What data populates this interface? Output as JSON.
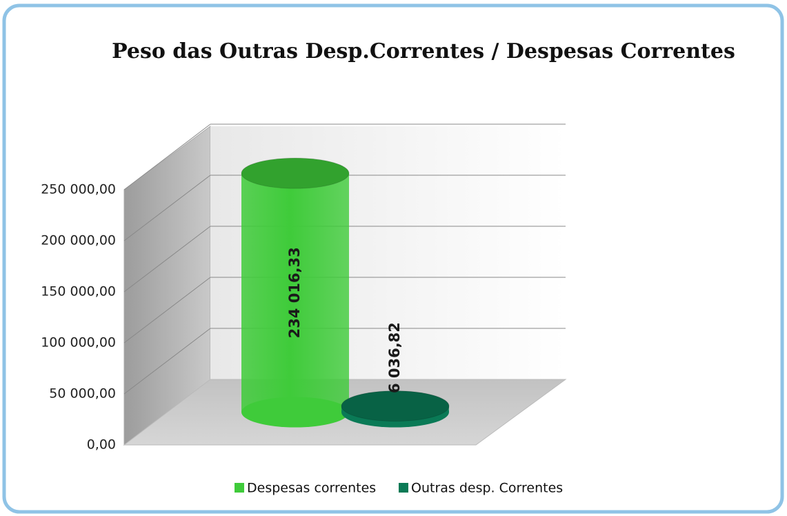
{
  "chart_data": {
    "type": "cylinder3d",
    "title": "Peso das Outras Desp.Correntes / Despesas Correntes",
    "series": [
      {
        "name": "Despesas correntes",
        "color": "#3fcb3a",
        "values": [
          234016.33
        ],
        "value_labels": [
          "234 016,33"
        ]
      },
      {
        "name": "Outras desp. Correntes",
        "color": "#0a7a56",
        "values": [
          6036.82
        ],
        "value_labels": [
          "6 036,82"
        ]
      }
    ],
    "ylim": [
      0,
      250000
    ],
    "yticks": [
      {
        "value": 0,
        "label": "0,00"
      },
      {
        "value": 50000,
        "label": "50 000,00"
      },
      {
        "value": 100000,
        "label": "100 000,00"
      },
      {
        "value": 150000,
        "label": "150 000,00"
      },
      {
        "value": 200000,
        "label": "200 000,00"
      },
      {
        "value": 250000,
        "label": "250 000,00"
      }
    ],
    "grid": true
  }
}
